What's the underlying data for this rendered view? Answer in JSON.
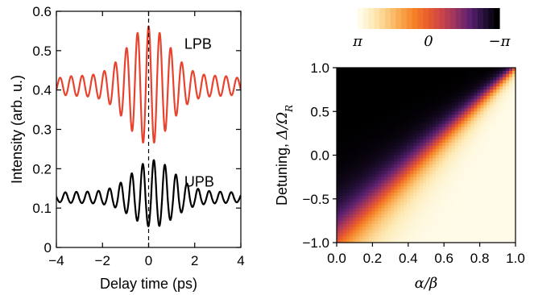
{
  "chart_data": [
    {
      "type": "line",
      "xlabel": "Delay time (ps)",
      "ylabel": "Intensity (arb. u.)",
      "xlim": [
        -4,
        4
      ],
      "ylim": [
        0,
        0.6
      ],
      "xticks": [
        "−4",
        "−2",
        "0",
        "2",
        "4"
      ],
      "yticks": [
        "0",
        "0.1",
        "0.2",
        "0.3",
        "0.4",
        "0.5",
        "0.6"
      ],
      "grid": false,
      "vline_x": 0,
      "series": [
        {
          "name": "LPB",
          "color": "#e8432e",
          "baseline": 0.41,
          "peak_delay": 0,
          "max_value": 0.562,
          "min_value": 0.262,
          "period_ps": 0.48,
          "x_range": [
            -4,
            4
          ]
        },
        {
          "name": "UPB",
          "color": "#000000",
          "baseline": 0.125,
          "peak_delay": 0.2,
          "max_value": 0.222,
          "min_value": 0.052,
          "period_ps": 0.48,
          "x_range": [
            -4,
            4
          ]
        }
      ]
    },
    {
      "type": "heatmap",
      "xlabel": "α/β",
      "ylabel_text": "Detuning, ",
      "ylabel_math": "Δ/Ω",
      "ylabel_sub": "R",
      "xlim": [
        0,
        1
      ],
      "ylim": [
        -1,
        1
      ],
      "xticks": [
        "0.0",
        "0.2",
        "0.4",
        "0.6",
        "0.8",
        "1.0"
      ],
      "yticks": [
        "1.0",
        "0.5",
        "0.0",
        "−0.5",
        "−1.0"
      ],
      "colorbar": {
        "labels": [
          "π",
          "0",
          "−π"
        ],
        "colors": [
          "#fffbe8",
          "#fde9b4",
          "#fcca7e",
          "#f9a54a",
          "#f57f27",
          "#e85b2e",
          "#c9444a",
          "#98325f",
          "#5e2170",
          "#2a1240",
          "#000000"
        ]
      }
    }
  ]
}
